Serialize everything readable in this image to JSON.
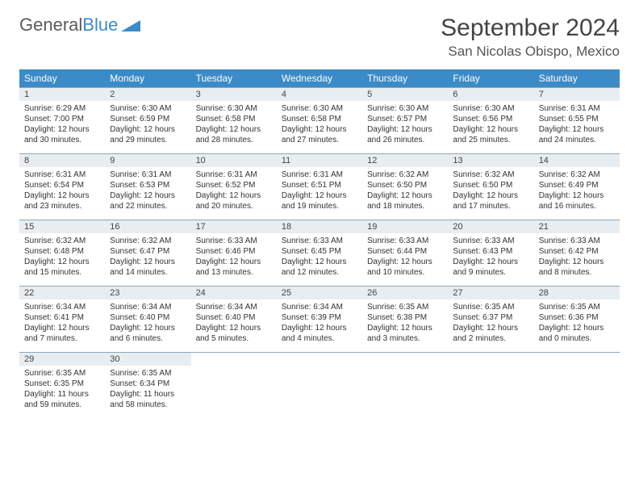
{
  "logo": {
    "word1": "General",
    "word2": "Blue"
  },
  "title": "September 2024",
  "location": "San Nicolas Obispo, Mexico",
  "colors": {
    "header_bg": "#3b8bc8",
    "header_fg": "#ffffff",
    "daynum_bg": "#e8edf1",
    "border": "#8aa7bb",
    "text": "#333333",
    "logo_gray": "#5a5a5a",
    "logo_blue": "#3b8bc8"
  },
  "day_names": [
    "Sunday",
    "Monday",
    "Tuesday",
    "Wednesday",
    "Thursday",
    "Friday",
    "Saturday"
  ],
  "weeks": [
    [
      {
        "n": "1",
        "sr": "6:29 AM",
        "ss": "7:00 PM",
        "dl": "12 hours and 30 minutes."
      },
      {
        "n": "2",
        "sr": "6:30 AM",
        "ss": "6:59 PM",
        "dl": "12 hours and 29 minutes."
      },
      {
        "n": "3",
        "sr": "6:30 AM",
        "ss": "6:58 PM",
        "dl": "12 hours and 28 minutes."
      },
      {
        "n": "4",
        "sr": "6:30 AM",
        "ss": "6:58 PM",
        "dl": "12 hours and 27 minutes."
      },
      {
        "n": "5",
        "sr": "6:30 AM",
        "ss": "6:57 PM",
        "dl": "12 hours and 26 minutes."
      },
      {
        "n": "6",
        "sr": "6:30 AM",
        "ss": "6:56 PM",
        "dl": "12 hours and 25 minutes."
      },
      {
        "n": "7",
        "sr": "6:31 AM",
        "ss": "6:55 PM",
        "dl": "12 hours and 24 minutes."
      }
    ],
    [
      {
        "n": "8",
        "sr": "6:31 AM",
        "ss": "6:54 PM",
        "dl": "12 hours and 23 minutes."
      },
      {
        "n": "9",
        "sr": "6:31 AM",
        "ss": "6:53 PM",
        "dl": "12 hours and 22 minutes."
      },
      {
        "n": "10",
        "sr": "6:31 AM",
        "ss": "6:52 PM",
        "dl": "12 hours and 20 minutes."
      },
      {
        "n": "11",
        "sr": "6:31 AM",
        "ss": "6:51 PM",
        "dl": "12 hours and 19 minutes."
      },
      {
        "n": "12",
        "sr": "6:32 AM",
        "ss": "6:50 PM",
        "dl": "12 hours and 18 minutes."
      },
      {
        "n": "13",
        "sr": "6:32 AM",
        "ss": "6:50 PM",
        "dl": "12 hours and 17 minutes."
      },
      {
        "n": "14",
        "sr": "6:32 AM",
        "ss": "6:49 PM",
        "dl": "12 hours and 16 minutes."
      }
    ],
    [
      {
        "n": "15",
        "sr": "6:32 AM",
        "ss": "6:48 PM",
        "dl": "12 hours and 15 minutes."
      },
      {
        "n": "16",
        "sr": "6:32 AM",
        "ss": "6:47 PM",
        "dl": "12 hours and 14 minutes."
      },
      {
        "n": "17",
        "sr": "6:33 AM",
        "ss": "6:46 PM",
        "dl": "12 hours and 13 minutes."
      },
      {
        "n": "18",
        "sr": "6:33 AM",
        "ss": "6:45 PM",
        "dl": "12 hours and 12 minutes."
      },
      {
        "n": "19",
        "sr": "6:33 AM",
        "ss": "6:44 PM",
        "dl": "12 hours and 10 minutes."
      },
      {
        "n": "20",
        "sr": "6:33 AM",
        "ss": "6:43 PM",
        "dl": "12 hours and 9 minutes."
      },
      {
        "n": "21",
        "sr": "6:33 AM",
        "ss": "6:42 PM",
        "dl": "12 hours and 8 minutes."
      }
    ],
    [
      {
        "n": "22",
        "sr": "6:34 AM",
        "ss": "6:41 PM",
        "dl": "12 hours and 7 minutes."
      },
      {
        "n": "23",
        "sr": "6:34 AM",
        "ss": "6:40 PM",
        "dl": "12 hours and 6 minutes."
      },
      {
        "n": "24",
        "sr": "6:34 AM",
        "ss": "6:40 PM",
        "dl": "12 hours and 5 minutes."
      },
      {
        "n": "25",
        "sr": "6:34 AM",
        "ss": "6:39 PM",
        "dl": "12 hours and 4 minutes."
      },
      {
        "n": "26",
        "sr": "6:35 AM",
        "ss": "6:38 PM",
        "dl": "12 hours and 3 minutes."
      },
      {
        "n": "27",
        "sr": "6:35 AM",
        "ss": "6:37 PM",
        "dl": "12 hours and 2 minutes."
      },
      {
        "n": "28",
        "sr": "6:35 AM",
        "ss": "6:36 PM",
        "dl": "12 hours and 0 minutes."
      }
    ],
    [
      {
        "n": "29",
        "sr": "6:35 AM",
        "ss": "6:35 PM",
        "dl": "11 hours and 59 minutes."
      },
      {
        "n": "30",
        "sr": "6:35 AM",
        "ss": "6:34 PM",
        "dl": "11 hours and 58 minutes."
      },
      null,
      null,
      null,
      null,
      null
    ]
  ],
  "labels": {
    "sunrise": "Sunrise:",
    "sunset": "Sunset:",
    "daylight": "Daylight:"
  }
}
